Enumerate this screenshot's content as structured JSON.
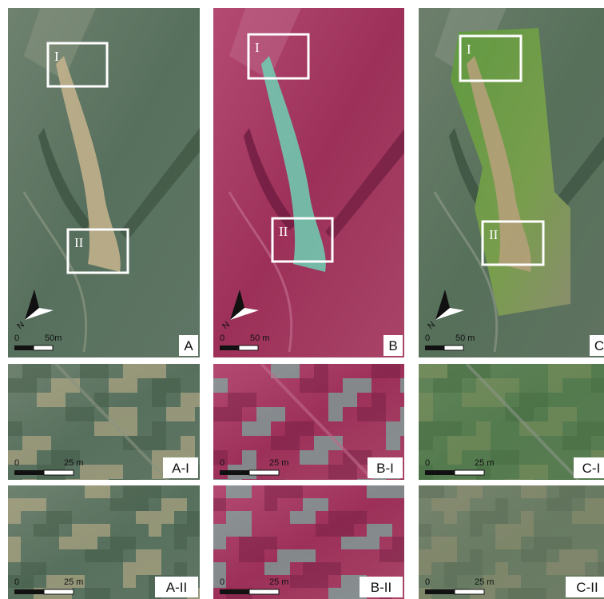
{
  "north": "N",
  "panels": [
    {
      "label": "A",
      "scale": [
        "0",
        "50m"
      ],
      "boxes": [
        "I",
        "II"
      ]
    },
    {
      "label": "B",
      "scale": [
        "0",
        "50 m"
      ],
      "boxes": [
        "I",
        "II"
      ]
    },
    {
      "label": "C",
      "scale": [
        "0",
        "50 m"
      ],
      "boxes": [
        "I",
        "II"
      ]
    },
    {
      "label": "A-I",
      "scale": [
        "0",
        "25 m"
      ]
    },
    {
      "label": "B-I",
      "scale": [
        "0",
        "25 m"
      ]
    },
    {
      "label": "C-I",
      "scale": [
        "0",
        "25 m"
      ]
    },
    {
      "label": "A-II",
      "scale": [
        "0",
        "25 m"
      ]
    },
    {
      "label": "B-II",
      "scale": [
        "0",
        "25 m"
      ]
    },
    {
      "label": "C-II",
      "scale": [
        "0",
        "25 m"
      ]
    }
  ]
}
